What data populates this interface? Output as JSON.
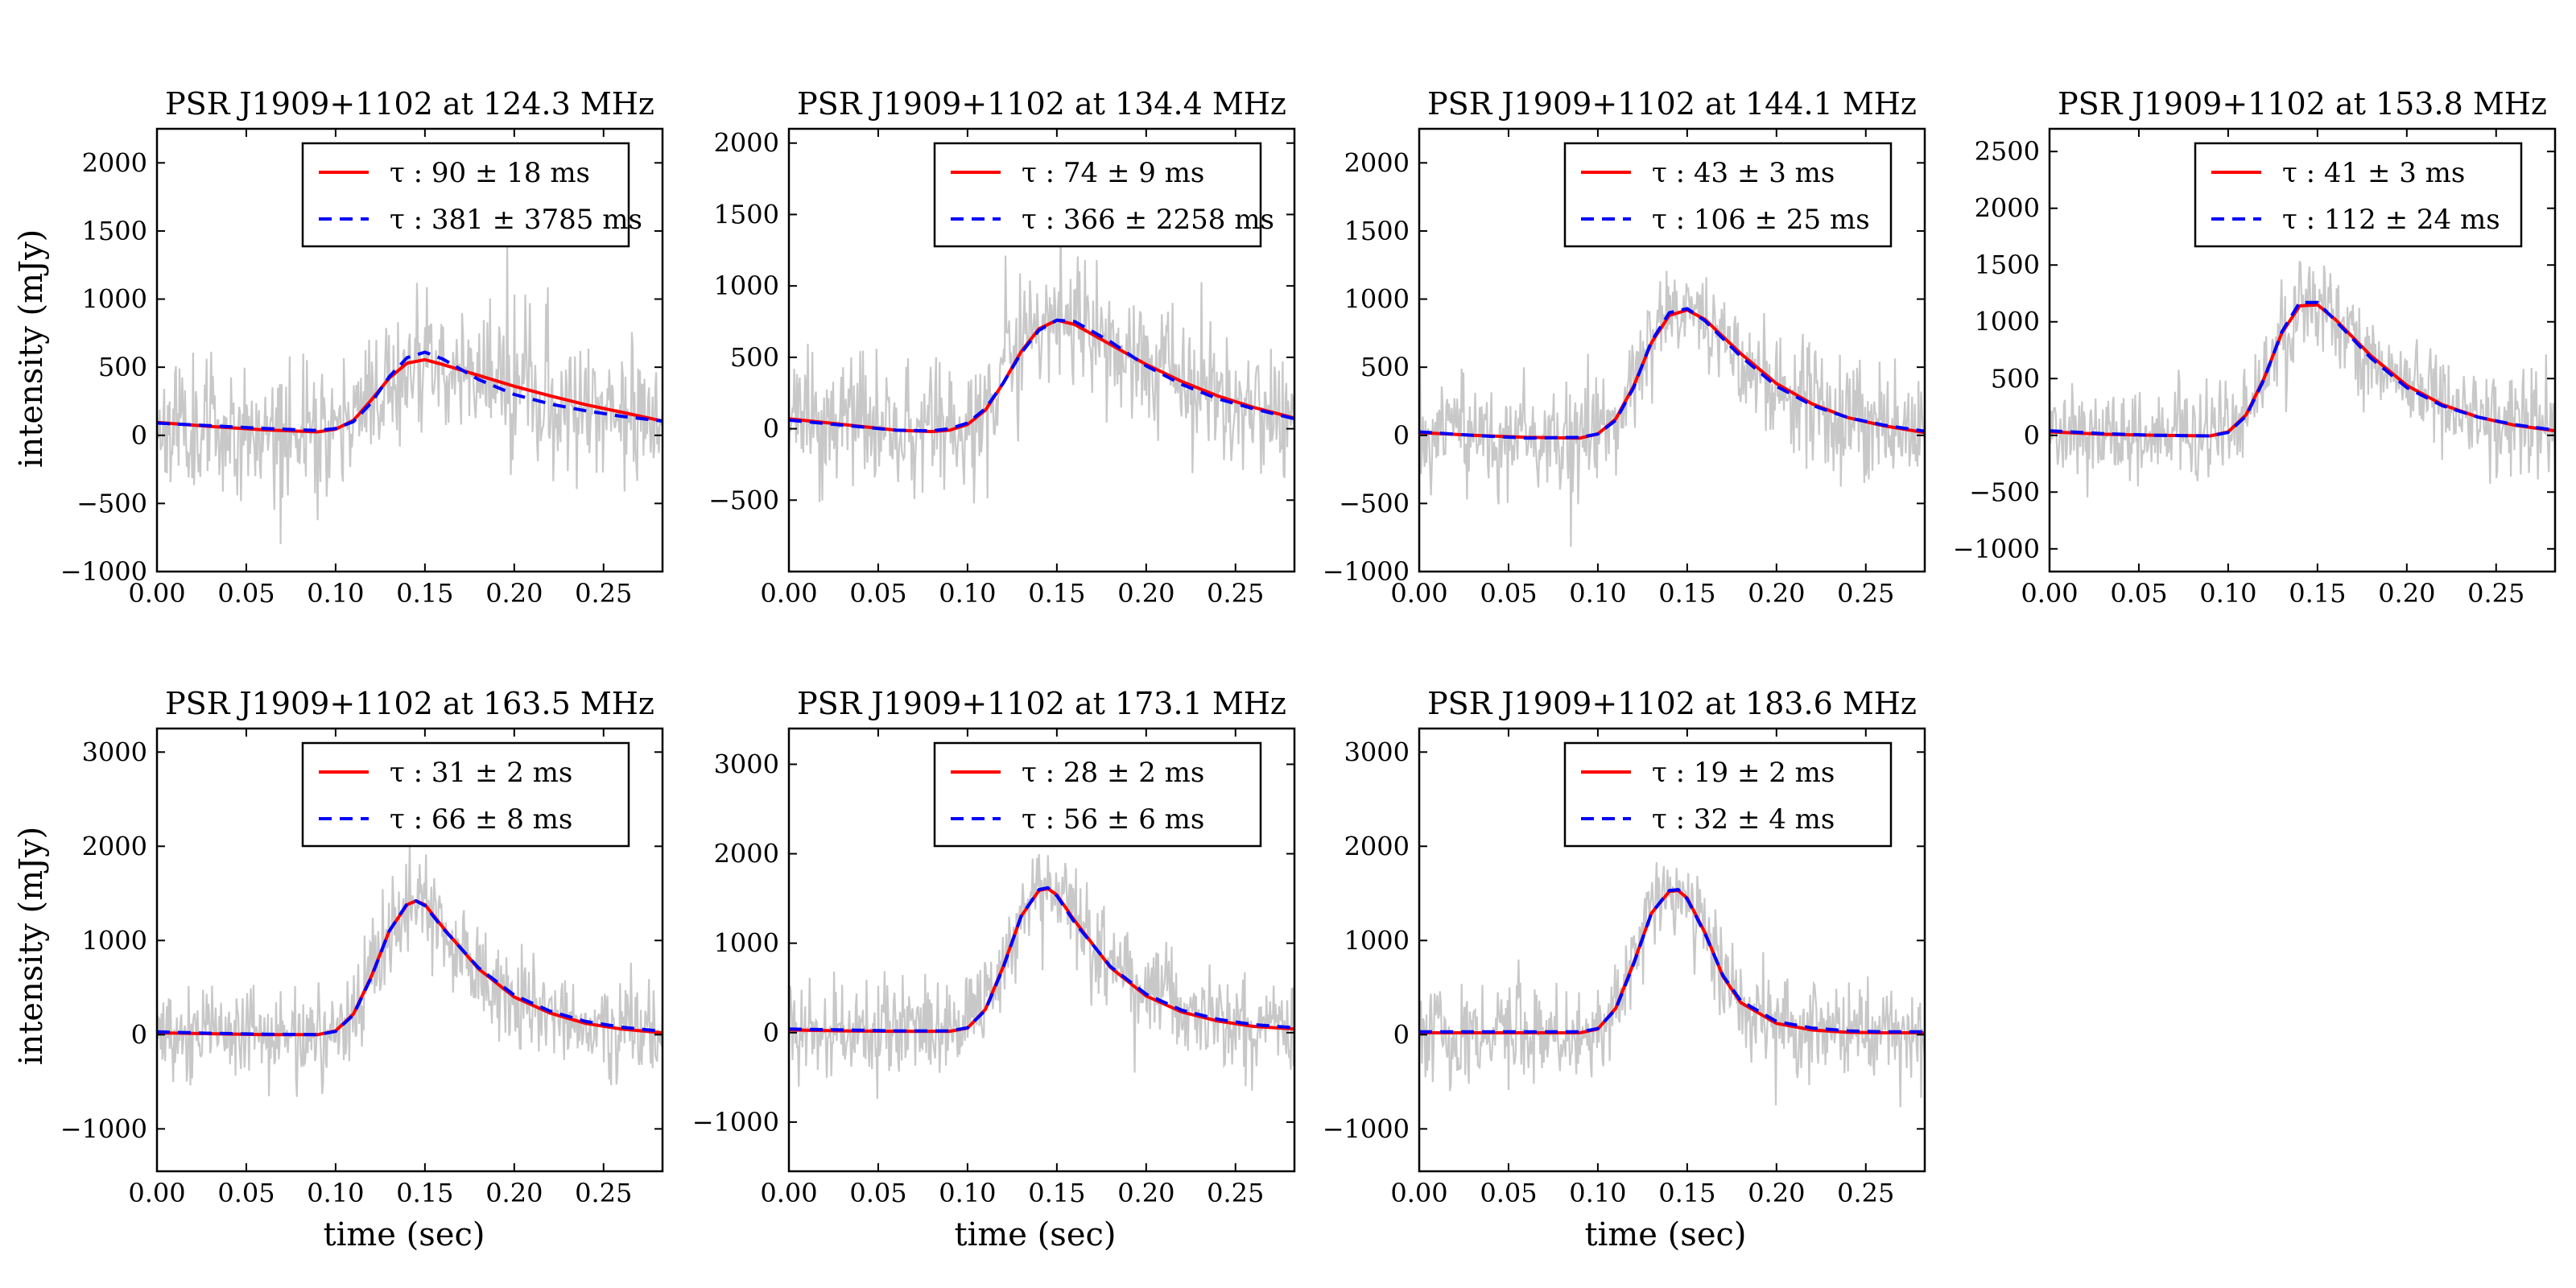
{
  "figure": {
    "ylabel": "intensity (mJy)",
    "xlabel": "time (sec)"
  },
  "chart_data": [
    {
      "type": "line",
      "title": "PSR J1909+1102 at 124.3 MHz",
      "xlabel": "",
      "ylabel": "intensity (mJy)",
      "xlim": [
        0,
        0.283
      ],
      "ylim": [
        -1000,
        2250
      ],
      "xticks": [
        0,
        0.05,
        0.1,
        0.15,
        0.2,
        0.25
      ],
      "xtick_labels": [
        "0.00",
        "0.05",
        "0.10",
        "0.15",
        "0.20",
        "0.25"
      ],
      "yticks": [
        -1000,
        -500,
        0,
        500,
        1000,
        1500,
        2000
      ],
      "ytick_labels": [
        "−1000",
        "−500",
        "0",
        "500",
        "1000",
        "1500",
        "2000"
      ],
      "data_series": {
        "name": "data",
        "color": "#c8c8c8",
        "noise": 230,
        "seed": 11
      },
      "series": [
        {
          "name": "fit1",
          "label": "τ : 90 ± 18 ms",
          "color": "#ff0000",
          "style": "solid",
          "x": [
            0,
            0.03,
            0.06,
            0.09,
            0.1,
            0.11,
            0.12,
            0.13,
            0.14,
            0.15,
            0.16,
            0.18,
            0.2,
            0.22,
            0.24,
            0.26,
            0.283
          ],
          "y": [
            95,
            65,
            40,
            25,
            45,
            110,
            260,
            420,
            530,
            555,
            520,
            440,
            360,
            290,
            225,
            170,
            105
          ]
        },
        {
          "name": "fit2",
          "label": "τ : 381 ± 3785 ms",
          "color": "#0000ff",
          "style": "dashed",
          "x": [
            0,
            0.03,
            0.06,
            0.09,
            0.1,
            0.11,
            0.12,
            0.13,
            0.14,
            0.15,
            0.16,
            0.18,
            0.2,
            0.22,
            0.24,
            0.26,
            0.283
          ],
          "y": [
            90,
            70,
            50,
            35,
            50,
            100,
            240,
            430,
            570,
            610,
            560,
            410,
            300,
            230,
            180,
            140,
            105
          ]
        }
      ]
    },
    {
      "type": "line",
      "title": "PSR J1909+1102 at 134.4 MHz",
      "xlabel": "",
      "ylabel": "",
      "xlim": [
        0,
        0.283
      ],
      "ylim": [
        -1000,
        2100
      ],
      "xticks": [
        0,
        0.05,
        0.1,
        0.15,
        0.2,
        0.25
      ],
      "xtick_labels": [
        "0.00",
        "0.05",
        "0.10",
        "0.15",
        "0.20",
        "0.25"
      ],
      "yticks": [
        -500,
        0,
        500,
        1000,
        1500,
        2000
      ],
      "ytick_labels": [
        "−500",
        "0",
        "500",
        "1000",
        "1500",
        "2000"
      ],
      "data_series": {
        "name": "data",
        "color": "#c8c8c8",
        "noise": 220,
        "seed": 23
      },
      "series": [
        {
          "name": "fit1",
          "label": "τ : 74 ± 9 ms",
          "color": "#ff0000",
          "style": "solid",
          "x": [
            0,
            0.03,
            0.06,
            0.08,
            0.09,
            0.1,
            0.11,
            0.12,
            0.13,
            0.14,
            0.15,
            0.16,
            0.18,
            0.2,
            0.22,
            0.24,
            0.26,
            0.283
          ],
          "y": [
            70,
            30,
            -10,
            -20,
            -10,
            30,
            130,
            320,
            540,
            700,
            760,
            730,
            590,
            450,
            330,
            230,
            150,
            75
          ]
        },
        {
          "name": "fit2",
          "label": "τ : 366 ± 2258 ms",
          "color": "#0000ff",
          "style": "dashed",
          "x": [
            0,
            0.03,
            0.06,
            0.08,
            0.09,
            0.1,
            0.11,
            0.12,
            0.13,
            0.14,
            0.15,
            0.16,
            0.18,
            0.2,
            0.22,
            0.24,
            0.26,
            0.283
          ],
          "y": [
            60,
            25,
            -10,
            -15,
            0,
            40,
            140,
            320,
            530,
            690,
            760,
            750,
            610,
            440,
            310,
            210,
            140,
            70
          ]
        }
      ]
    },
    {
      "type": "line",
      "title": "PSR J1909+1102 at 144.1 MHz",
      "xlabel": "",
      "ylabel": "",
      "xlim": [
        0,
        0.283
      ],
      "ylim": [
        -1000,
        2250
      ],
      "xticks": [
        0,
        0.05,
        0.1,
        0.15,
        0.2,
        0.25
      ],
      "xtick_labels": [
        "0.00",
        "0.05",
        "0.10",
        "0.15",
        "0.20",
        "0.25"
      ],
      "yticks": [
        -1000,
        -500,
        0,
        500,
        1000,
        1500,
        2000
      ],
      "ytick_labels": [
        "−1000",
        "−500",
        "0",
        "500",
        "1000",
        "1500",
        "2000"
      ],
      "data_series": {
        "name": "data",
        "color": "#c8c8c8",
        "noise": 200,
        "seed": 37
      },
      "series": [
        {
          "name": "fit1",
          "label": "τ : 43 ± 3 ms",
          "color": "#ff0000",
          "style": "solid",
          "x": [
            0,
            0.03,
            0.06,
            0.09,
            0.1,
            0.11,
            0.12,
            0.13,
            0.14,
            0.15,
            0.16,
            0.18,
            0.2,
            0.22,
            0.24,
            0.26,
            0.283
          ],
          "y": [
            20,
            0,
            -15,
            -20,
            10,
            120,
            360,
            680,
            880,
            920,
            850,
            600,
            380,
            230,
            130,
            70,
            20
          ]
        },
        {
          "name": "fit2",
          "label": "τ : 106 ± 25 ms",
          "color": "#0000ff",
          "style": "dashed",
          "x": [
            0,
            0.03,
            0.06,
            0.09,
            0.1,
            0.11,
            0.12,
            0.13,
            0.14,
            0.15,
            0.16,
            0.18,
            0.2,
            0.22,
            0.24,
            0.26,
            0.283
          ],
          "y": [
            25,
            0,
            -20,
            -15,
            10,
            110,
            350,
            690,
            900,
            930,
            840,
            580,
            360,
            220,
            130,
            75,
            30
          ]
        }
      ]
    },
    {
      "type": "line",
      "title": "PSR J1909+1102 at 153.8 MHz",
      "xlabel": "",
      "ylabel": "",
      "xlim": [
        0,
        0.283
      ],
      "ylim": [
        -1200,
        2700
      ],
      "xticks": [
        0,
        0.05,
        0.1,
        0.15,
        0.2,
        0.25
      ],
      "xtick_labels": [
        "0.00",
        "0.05",
        "0.10",
        "0.15",
        "0.20",
        "0.25"
      ],
      "yticks": [
        -1000,
        -500,
        0,
        500,
        1000,
        1500,
        2000,
        2500
      ],
      "ytick_labels": [
        "−1000",
        "−500",
        "0",
        "500",
        "1000",
        "1500",
        "2000",
        "2500"
      ],
      "data_series": {
        "name": "data",
        "color": "#c8c8c8",
        "noise": 220,
        "seed": 41
      },
      "series": [
        {
          "name": "fit1",
          "label": "τ : 41 ± 3 ms",
          "color": "#ff0000",
          "style": "solid",
          "x": [
            0,
            0.03,
            0.06,
            0.09,
            0.1,
            0.11,
            0.12,
            0.13,
            0.14,
            0.15,
            0.16,
            0.18,
            0.2,
            0.22,
            0.24,
            0.26,
            0.283
          ],
          "y": [
            30,
            10,
            0,
            -5,
            30,
            180,
            500,
            900,
            1140,
            1150,
            1020,
            700,
            440,
            270,
            160,
            90,
            40
          ]
        },
        {
          "name": "fit2",
          "label": "τ : 112 ± 24 ms",
          "color": "#0000ff",
          "style": "dashed",
          "x": [
            0,
            0.03,
            0.06,
            0.09,
            0.1,
            0.11,
            0.12,
            0.13,
            0.14,
            0.15,
            0.16,
            0.18,
            0.2,
            0.22,
            0.24,
            0.26,
            0.283
          ],
          "y": [
            40,
            15,
            0,
            -5,
            25,
            170,
            490,
            910,
            1170,
            1170,
            1010,
            680,
            420,
            260,
            160,
            95,
            45
          ]
        }
      ]
    },
    {
      "type": "line",
      "title": "PSR J1909+1102 at 163.5 MHz",
      "xlabel": "time (sec)",
      "ylabel": "intensity (mJy)",
      "xlim": [
        0,
        0.283
      ],
      "ylim": [
        -1450,
        3250
      ],
      "xticks": [
        0,
        0.05,
        0.1,
        0.15,
        0.2,
        0.25
      ],
      "xtick_labels": [
        "0.00",
        "0.05",
        "0.10",
        "0.15",
        "0.20",
        "0.25"
      ],
      "yticks": [
        -1000,
        0,
        1000,
        2000,
        3000
      ],
      "ytick_labels": [
        "−1000",
        "0",
        "1000",
        "2000",
        "3000"
      ],
      "data_series": {
        "name": "data",
        "color": "#c8c8c8",
        "noise": 260,
        "seed": 53
      },
      "series": [
        {
          "name": "fit1",
          "label": "τ : 31 ± 2 ms",
          "color": "#ff0000",
          "style": "solid",
          "x": [
            0,
            0.03,
            0.06,
            0.09,
            0.1,
            0.11,
            0.12,
            0.13,
            0.14,
            0.145,
            0.15,
            0.16,
            0.18,
            0.2,
            0.22,
            0.24,
            0.26,
            0.283
          ],
          "y": [
            20,
            10,
            0,
            0,
            40,
            220,
            620,
            1100,
            1380,
            1420,
            1380,
            1140,
            700,
            400,
            230,
            120,
            60,
            20
          ]
        },
        {
          "name": "fit2",
          "label": "τ : 66 ± 8 ms",
          "color": "#0000ff",
          "style": "dashed",
          "x": [
            0,
            0.03,
            0.06,
            0.09,
            0.1,
            0.11,
            0.12,
            0.13,
            0.14,
            0.145,
            0.15,
            0.16,
            0.18,
            0.2,
            0.22,
            0.24,
            0.26,
            0.283
          ],
          "y": [
            30,
            15,
            5,
            0,
            35,
            210,
            610,
            1100,
            1390,
            1420,
            1370,
            1130,
            710,
            420,
            250,
            140,
            80,
            35
          ]
        }
      ]
    },
    {
      "type": "line",
      "title": "PSR J1909+1102 at 173.1 MHz",
      "xlabel": "time (sec)",
      "ylabel": "",
      "xlim": [
        0,
        0.283
      ],
      "ylim": [
        -1550,
        3400
      ],
      "xticks": [
        0,
        0.05,
        0.1,
        0.15,
        0.2,
        0.25
      ],
      "xtick_labels": [
        "0.00",
        "0.05",
        "0.10",
        "0.15",
        "0.20",
        "0.25"
      ],
      "yticks": [
        -1000,
        0,
        1000,
        2000,
        3000
      ],
      "ytick_labels": [
        "−1000",
        "0",
        "1000",
        "2000",
        "3000"
      ],
      "data_series": {
        "name": "data",
        "color": "#c8c8c8",
        "noise": 260,
        "seed": 67
      },
      "series": [
        {
          "name": "fit1",
          "label": "τ : 28 ± 2 ms",
          "color": "#ff0000",
          "style": "solid",
          "x": [
            0,
            0.03,
            0.06,
            0.09,
            0.1,
            0.11,
            0.12,
            0.13,
            0.14,
            0.145,
            0.15,
            0.16,
            0.18,
            0.2,
            0.22,
            0.24,
            0.26,
            0.283
          ],
          "y": [
            30,
            20,
            15,
            15,
            50,
            260,
            740,
            1300,
            1590,
            1610,
            1540,
            1250,
            730,
            410,
            230,
            130,
            70,
            40
          ]
        },
        {
          "name": "fit2",
          "label": "τ : 56 ± 6 ms",
          "color": "#0000ff",
          "style": "dashed",
          "x": [
            0,
            0.03,
            0.06,
            0.09,
            0.1,
            0.11,
            0.12,
            0.13,
            0.14,
            0.145,
            0.15,
            0.16,
            0.18,
            0.2,
            0.22,
            0.24,
            0.26,
            0.283
          ],
          "y": [
            40,
            30,
            20,
            20,
            55,
            250,
            730,
            1300,
            1600,
            1620,
            1530,
            1230,
            740,
            430,
            250,
            150,
            90,
            55
          ]
        }
      ]
    },
    {
      "type": "line",
      "title": "PSR J1909+1102 at 183.6 MHz",
      "xlabel": "time (sec)",
      "ylabel": "",
      "xlim": [
        0,
        0.283
      ],
      "ylim": [
        -1450,
        3250
      ],
      "xticks": [
        0,
        0.05,
        0.1,
        0.15,
        0.2,
        0.25
      ],
      "xtick_labels": [
        "0.00",
        "0.05",
        "0.10",
        "0.15",
        "0.20",
        "0.25"
      ],
      "yticks": [
        -1000,
        0,
        1000,
        2000,
        3000
      ],
      "ytick_labels": [
        "−1000",
        "0",
        "1000",
        "2000",
        "3000"
      ],
      "data_series": {
        "name": "data",
        "color": "#c8c8c8",
        "noise": 250,
        "seed": 79
      },
      "series": [
        {
          "name": "fit1",
          "label": "τ : 19 ± 2 ms",
          "color": "#ff0000",
          "style": "solid",
          "x": [
            0,
            0.03,
            0.06,
            0.09,
            0.1,
            0.11,
            0.12,
            0.13,
            0.14,
            0.145,
            0.15,
            0.16,
            0.17,
            0.18,
            0.2,
            0.22,
            0.24,
            0.26,
            0.283
          ],
          "y": [
            20,
            20,
            20,
            20,
            60,
            280,
            760,
            1290,
            1520,
            1530,
            1450,
            1080,
            620,
            340,
            120,
            50,
            25,
            20,
            20
          ]
        },
        {
          "name": "fit2",
          "label": "τ : 32 ± 4 ms",
          "color": "#0000ff",
          "style": "dashed",
          "x": [
            0,
            0.03,
            0.06,
            0.09,
            0.1,
            0.11,
            0.12,
            0.13,
            0.14,
            0.145,
            0.15,
            0.16,
            0.17,
            0.18,
            0.2,
            0.22,
            0.24,
            0.26,
            0.283
          ],
          "y": [
            30,
            30,
            30,
            30,
            65,
            270,
            750,
            1290,
            1530,
            1540,
            1440,
            1070,
            630,
            360,
            140,
            70,
            40,
            30,
            30
          ]
        }
      ]
    }
  ]
}
